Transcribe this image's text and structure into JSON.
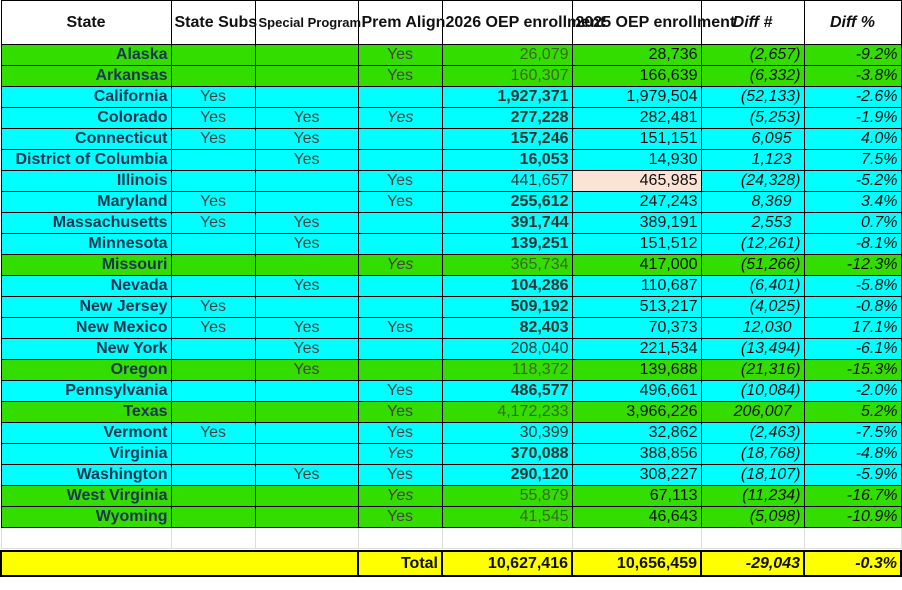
{
  "headers": {
    "state": "State",
    "state_subs": "State Subs",
    "special": "Special Program",
    "prem": "Prem Align",
    "y2026": "2026 OEP enrollment",
    "y2025": "2025 OEP enrollment",
    "diff": "Diff #",
    "pct": "Diff %"
  },
  "colors": {
    "green": "#33dd00",
    "cyan": "#00ffff",
    "total": "#ffff00",
    "highlight": "#fbe4d5"
  },
  "rows": [
    {
      "state": "Alaska",
      "color": "green",
      "subs": "",
      "special": "",
      "prem": "Yes",
      "y2026": "26,079",
      "y2025": "28,736",
      "diff": "(2,657)",
      "pct": "-9.2%"
    },
    {
      "state": "Arkansas",
      "color": "green",
      "subs": "",
      "special": "",
      "prem": "Yes",
      "y2026": "160,307",
      "y2025": "166,639",
      "diff": "(6,332)",
      "pct": "-3.8%"
    },
    {
      "state": "California",
      "color": "cyan",
      "subs": "Yes",
      "special": "",
      "prem": "",
      "y2026": "1,927,371",
      "y2025": "1,979,504",
      "diff": "(52,133)",
      "pct": "-2.6%"
    },
    {
      "state": "Colorado",
      "color": "cyan",
      "subs": "Yes",
      "special": "Yes",
      "prem": "Yes",
      "y2026": "277,228",
      "y2025": "282,481",
      "diff": "(5,253)",
      "pct": "-1.9%"
    },
    {
      "state": "Connecticut",
      "color": "cyan",
      "subs": "Yes",
      "special": "Yes",
      "prem": "",
      "y2026": "157,246",
      "y2025": "151,151",
      "diff": "6,095",
      "pct": "4.0%"
    },
    {
      "state": "District of Columbia",
      "color": "cyan",
      "subs": "",
      "special": "Yes",
      "prem": "",
      "y2026": "16,053",
      "y2025": "14,930",
      "diff": "1,123",
      "pct": "7.5%"
    },
    {
      "state": "Illinois",
      "color": "cyan",
      "subs": "",
      "special": "",
      "prem": "Yes",
      "y2026": "441,657",
      "y2025": "465,985",
      "diff": "(24,328)",
      "pct": "-5.2%"
    },
    {
      "state": "Maryland",
      "color": "cyan",
      "subs": "Yes",
      "special": "",
      "prem": "Yes",
      "y2026": "255,612",
      "y2025": "247,243",
      "diff": "8,369",
      "pct": "3.4%"
    },
    {
      "state": "Massachusetts",
      "color": "cyan",
      "subs": "Yes",
      "special": "Yes",
      "prem": "",
      "y2026": "391,744",
      "y2025": "389,191",
      "diff": "2,553",
      "pct": "0.7%"
    },
    {
      "state": "Minnesota",
      "color": "cyan",
      "subs": "",
      "special": "Yes",
      "prem": "",
      "y2026": "139,251",
      "y2025": "151,512",
      "diff": "(12,261)",
      "pct": "-8.1%"
    },
    {
      "state": "Missouri",
      "color": "green",
      "subs": "",
      "special": "",
      "prem": "Yes",
      "y2026": "365,734",
      "y2025": "417,000",
      "diff": "(51,266)",
      "pct": "-12.3%"
    },
    {
      "state": "Nevada",
      "color": "cyan",
      "subs": "",
      "special": "Yes",
      "prem": "",
      "y2026": "104,286",
      "y2025": "110,687",
      "diff": "(6,401)",
      "pct": "-5.8%"
    },
    {
      "state": "New Jersey",
      "color": "cyan",
      "subs": "Yes",
      "special": "",
      "prem": "",
      "y2026": "509,192",
      "y2025": "513,217",
      "diff": "(4,025)",
      "pct": "-0.8%"
    },
    {
      "state": "New Mexico",
      "color": "cyan",
      "subs": "Yes",
      "special": "Yes",
      "prem": "Yes",
      "y2026": "82,403",
      "y2025": "70,373",
      "diff": "12,030",
      "pct": "17.1%"
    },
    {
      "state": "New York",
      "color": "cyan",
      "subs": "",
      "special": "Yes",
      "prem": "",
      "y2026": "208,040",
      "y2025": "221,534",
      "diff": "(13,494)",
      "pct": "-6.1%"
    },
    {
      "state": "Oregon",
      "color": "green",
      "subs": "",
      "special": "Yes",
      "prem": "",
      "y2026": "118,372",
      "y2025": "139,688",
      "diff": "(21,316)",
      "pct": "-15.3%"
    },
    {
      "state": "Pennsylvania",
      "color": "cyan",
      "subs": "",
      "special": "",
      "prem": "Yes",
      "y2026": "486,577",
      "y2025": "496,661",
      "diff": "(10,084)",
      "pct": "-2.0%"
    },
    {
      "state": "Texas",
      "color": "green",
      "subs": "",
      "special": "",
      "prem": "Yes",
      "y2026": "4,172,233",
      "y2025": "3,966,226",
      "diff": "206,007",
      "pct": "5.2%"
    },
    {
      "state": "Vermont",
      "color": "cyan",
      "subs": "Yes",
      "special": "",
      "prem": "Yes",
      "y2026": "30,399",
      "y2025": "32,862",
      "diff": "(2,463)",
      "pct": "-7.5%"
    },
    {
      "state": "Virginia",
      "color": "cyan",
      "subs": "",
      "special": "",
      "prem": "Yes",
      "y2026": "370,088",
      "y2025": "388,856",
      "diff": "(18,768)",
      "pct": "-4.8%"
    },
    {
      "state": "Washington",
      "color": "cyan",
      "subs": "",
      "special": "Yes",
      "prem": "Yes",
      "y2026": "290,120",
      "y2025": "308,227",
      "diff": "(18,107)",
      "pct": "-5.9%"
    },
    {
      "state": "West Virginia",
      "color": "green",
      "subs": "",
      "special": "",
      "prem": "Yes",
      "y2026": "55,879",
      "y2025": "67,113",
      "diff": "(11,234)",
      "pct": "-16.7%"
    },
    {
      "state": "Wyoming",
      "color": "green",
      "subs": "",
      "special": "",
      "prem": "Yes",
      "y2026": "41,545",
      "y2025": "46,643",
      "diff": "(5,098)",
      "pct": "-10.9%"
    }
  ],
  "total": {
    "label": "Total",
    "y2026": "10,627,416",
    "y2025": "10,656,459",
    "diff": "-29,043",
    "pct": "-0.3%"
  }
}
